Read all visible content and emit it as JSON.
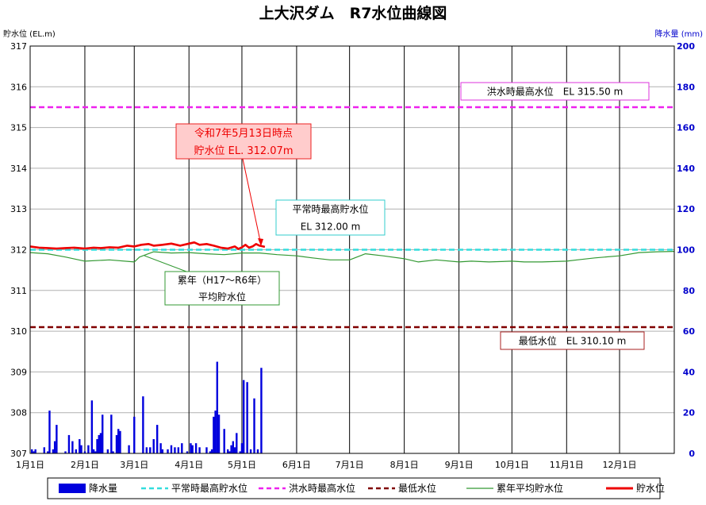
{
  "chart_data": {
    "type": "line",
    "title": "上大沢ダム　R7水位曲線図",
    "y_left": {
      "label": "貯水位 (EL.m)",
      "min": 307,
      "max": 317,
      "ticks": [
        307,
        308,
        309,
        310,
        311,
        312,
        313,
        314,
        315,
        316,
        317
      ],
      "color": "#000000"
    },
    "y_right": {
      "label": "降水量 (mm)",
      "min": 0,
      "max": 200,
      "ticks": [
        0,
        20,
        40,
        60,
        80,
        100,
        120,
        140,
        160,
        180,
        200
      ],
      "color": "#0000cc"
    },
    "x_axis": {
      "min_day": 0,
      "max_day": 365,
      "grid": true,
      "months": [
        {
          "label": "1月1日",
          "day": 0
        },
        {
          "label": "2月1日",
          "day": 31
        },
        {
          "label": "3月1日",
          "day": 59
        },
        {
          "label": "4月1日",
          "day": 90
        },
        {
          "label": "5月1日",
          "day": 120
        },
        {
          "label": "6月1日",
          "day": 151
        },
        {
          "label": "7月1日",
          "day": 181
        },
        {
          "label": "8月1日",
          "day": 212
        },
        {
          "label": "9月1日",
          "day": 243
        },
        {
          "label": "10月1日",
          "day": 273
        },
        {
          "label": "11月1日",
          "day": 304
        },
        {
          "label": "12月1日",
          "day": 334
        }
      ]
    },
    "reference_lines": [
      {
        "name": "平常時最高貯水位",
        "value": 312.0,
        "color": "#33dddd",
        "label_lines": [
          "平常時最高貯水位",
          "EL 312.00 m"
        ],
        "label_border": "#33cccc"
      },
      {
        "name": "洪水時最高水位",
        "value": 315.5,
        "color": "#ee22ee",
        "label_lines": [
          "洪水時最高水位　EL 315.50 m"
        ],
        "label_border": "#dd33dd"
      },
      {
        "name": "最低水位",
        "value": 310.1,
        "color": "#800000",
        "label_lines": [
          "最低水位　EL 310.10 m"
        ],
        "label_border": "#aa2222"
      }
    ],
    "series": [
      {
        "name": "累年平均貯水位",
        "type": "line",
        "color": "#339933",
        "days": [
          0,
          10,
          20,
          31,
          45,
          59,
          62,
          70,
          80,
          90,
          100,
          110,
          120,
          130,
          140,
          151,
          160,
          170,
          181,
          190,
          200,
          212,
          220,
          230,
          243,
          250,
          260,
          273,
          280,
          290,
          304,
          310,
          320,
          334,
          345,
          355,
          365
        ],
        "values": [
          311.93,
          311.9,
          311.82,
          311.72,
          311.75,
          311.7,
          311.82,
          311.95,
          311.92,
          311.93,
          311.9,
          311.88,
          311.92,
          311.92,
          311.88,
          311.85,
          311.8,
          311.75,
          311.75,
          311.9,
          311.85,
          311.78,
          311.7,
          311.75,
          311.7,
          311.72,
          311.7,
          311.72,
          311.7,
          311.7,
          311.72,
          311.75,
          311.8,
          311.85,
          311.93,
          311.95,
          311.96
        ]
      },
      {
        "name": "貯水位",
        "type": "line",
        "color": "#ee0000",
        "days": [
          0,
          5,
          10,
          15,
          20,
          25,
          31,
          36,
          40,
          45,
          50,
          55,
          59,
          63,
          67,
          70,
          75,
          80,
          85,
          90,
          93,
          96,
          100,
          104,
          108,
          112,
          116,
          118,
          120,
          122,
          124,
          126,
          128,
          130,
          133
        ],
        "values": [
          312.08,
          312.05,
          312.04,
          312.03,
          312.04,
          312.05,
          312.03,
          312.05,
          312.04,
          312.06,
          312.05,
          312.1,
          312.08,
          312.12,
          312.14,
          312.1,
          312.12,
          312.15,
          312.1,
          312.15,
          312.18,
          312.12,
          312.14,
          312.1,
          312.05,
          312.03,
          312.08,
          312.02,
          312.06,
          312.12,
          312.05,
          312.08,
          312.14,
          312.1,
          312.07
        ]
      },
      {
        "name": "降水量",
        "type": "bar",
        "color": "#0000dd",
        "days": [
          1,
          2,
          3,
          8,
          10,
          11,
          13,
          14,
          15,
          20,
          22,
          24,
          26,
          28,
          29,
          31,
          33,
          35,
          36,
          37,
          38,
          39,
          40,
          41,
          44,
          46,
          47,
          49,
          50,
          51,
          56,
          59,
          64,
          66,
          68,
          70,
          72,
          74,
          75,
          78,
          80,
          82,
          84,
          86,
          89,
          91,
          92,
          94,
          96,
          100,
          102,
          103,
          104,
          105,
          106,
          107,
          110,
          112,
          113,
          114,
          115,
          116,
          117,
          119,
          120,
          121,
          123,
          125,
          127,
          129,
          131
        ],
        "values": [
          2,
          1,
          2,
          3,
          1,
          21,
          2,
          6,
          14,
          1,
          9,
          6,
          2,
          7,
          4,
          1,
          4,
          26,
          2,
          1,
          7,
          9,
          10,
          19,
          2,
          19,
          1,
          9,
          12,
          11,
          4,
          18,
          28,
          3,
          3,
          7,
          14,
          5,
          2,
          2,
          4,
          3,
          3,
          5,
          1,
          5,
          4,
          5,
          3,
          3,
          1,
          2,
          18,
          21,
          45,
          19,
          12,
          2,
          1,
          4,
          6,
          3,
          10,
          1,
          5,
          36,
          35,
          2,
          27,
          2,
          42
        ]
      }
    ],
    "annotation": {
      "lines": [
        "令和7年5月13日時点",
        "貯水位 EL. 312.07m"
      ],
      "bg": "#ffcccc",
      "border": "#ee2222",
      "text_color": "#ee0000"
    },
    "avg_label": {
      "lines": [
        "累年（H17～R6年）",
        "平均貯水位"
      ],
      "border": "#339933"
    },
    "legend": {
      "position": "bottom",
      "items": [
        {
          "name": "降水量",
          "kind": "bar",
          "color": "#0000dd"
        },
        {
          "name": "平常時最高貯水位",
          "kind": "dash",
          "color": "#33dddd"
        },
        {
          "name": "洪水時最高水位",
          "kind": "dash",
          "color": "#ee22ee"
        },
        {
          "name": "最低水位",
          "kind": "dash",
          "color": "#800000"
        },
        {
          "name": "累年平均貯水位",
          "kind": "line",
          "color": "#339933"
        },
        {
          "name": "貯水位",
          "kind": "line",
          "color": "#ee0000"
        }
      ]
    }
  }
}
